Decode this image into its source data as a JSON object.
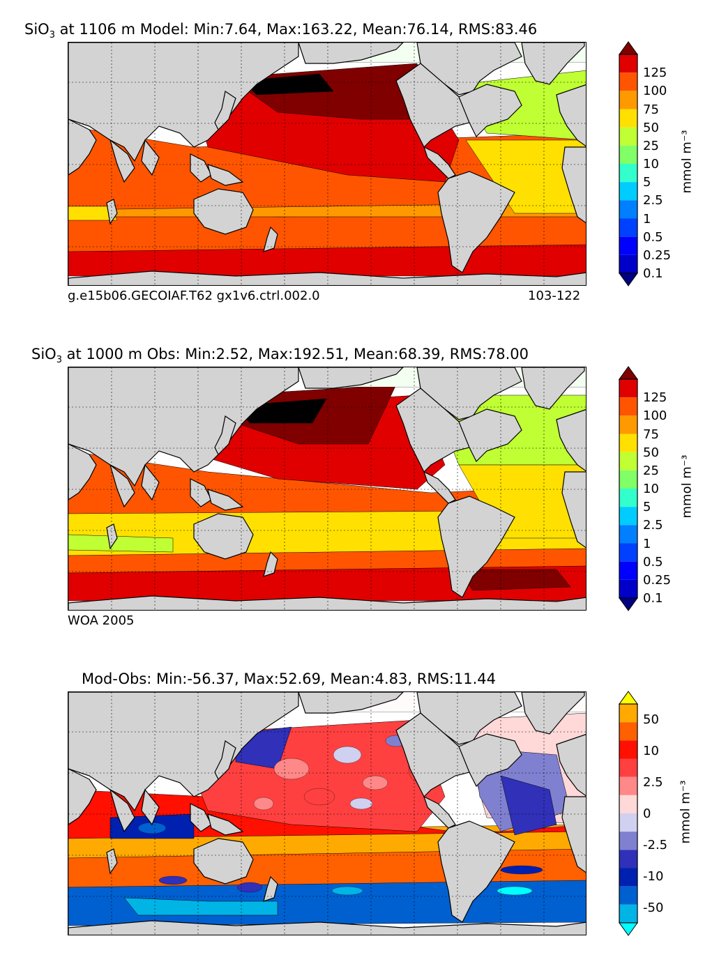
{
  "panels": [
    {
      "title_text": "at 1106 m Model: Min:7.64, Max:163.22, Mean:76.14, RMS:83.46",
      "caption_left": "g.e15b06.GECOIAF.T62 gx1v6.ctrl.002.0",
      "caption_right": "103-122"
    },
    {
      "title_text": "at 1000 m Obs: Min:2.52, Max:192.51, Mean:68.39, RMS:78.00",
      "caption_left": "WOA 2005",
      "caption_right": ""
    },
    {
      "title_text": "Mod-Obs: Min:-56.37, Max:52.69, Mean:4.83, RMS:11.44",
      "caption_left": "",
      "caption_right": ""
    }
  ],
  "species": {
    "base": "SiO",
    "sub": "3"
  },
  "units": "mmol m⁻³",
  "chart_data": [
    {
      "type": "heatmap",
      "title": "SiO3 at 1106 m Model: Min:7.64, Max:163.22, Mean:76.14, RMS:83.46",
      "stats": {
        "min": 7.64,
        "max": 163.22,
        "mean": 76.14,
        "rms": 83.46
      },
      "depth_m": 1106,
      "colorbar": {
        "tick_labels": [
          "125",
          "100",
          "75",
          "50",
          "25",
          "10",
          "5",
          "2.5",
          "1",
          "0.5",
          "0.25",
          "0.1"
        ],
        "levels": [
          0.1,
          0.25,
          0.5,
          1,
          2.5,
          5,
          10,
          25,
          50,
          75,
          100,
          125
        ],
        "colors": [
          "#000080",
          "#0000c8",
          "#0000ff",
          "#0040ff",
          "#0080ff",
          "#00ccff",
          "#33ffcc",
          "#80ff66",
          "#bfff33",
          "#ffe000",
          "#ff9900",
          "#ff5500",
          "#e00000",
          "#800000"
        ],
        "extend": "both"
      },
      "legend_position": "right",
      "grid": true
    },
    {
      "type": "heatmap",
      "title": "SiO3 at 1000 m Obs: Min:2.52, Max:192.51, Mean:68.39, RMS:78.00",
      "stats": {
        "min": 2.52,
        "max": 192.51,
        "mean": 68.39,
        "rms": 78.0
      },
      "depth_m": 1000,
      "colorbar": {
        "tick_labels": [
          "125",
          "100",
          "75",
          "50",
          "25",
          "10",
          "5",
          "2.5",
          "1",
          "0.5",
          "0.25",
          "0.1"
        ],
        "levels": [
          0.1,
          0.25,
          0.5,
          1,
          2.5,
          5,
          10,
          25,
          50,
          75,
          100,
          125
        ],
        "colors": [
          "#000080",
          "#0000c8",
          "#0000ff",
          "#0040ff",
          "#0080ff",
          "#00ccff",
          "#33ffcc",
          "#80ff66",
          "#bfff33",
          "#ffe000",
          "#ff9900",
          "#ff5500",
          "#e00000",
          "#800000"
        ],
        "extend": "both"
      },
      "legend_position": "right",
      "grid": true
    },
    {
      "type": "heatmap",
      "title": "Mod-Obs: Min:-56.37, Max:52.69, Mean:4.83, RMS:11.44",
      "stats": {
        "min": -56.37,
        "max": 52.69,
        "mean": 4.83,
        "rms": 11.44
      },
      "colorbar": {
        "tick_labels": [
          "50",
          "10",
          "2.5",
          "0",
          "-2.5",
          "-10",
          "-50"
        ],
        "levels": [
          -50,
          -25,
          -10,
          -5,
          -2.5,
          -1,
          0,
          1,
          2.5,
          5,
          10,
          25,
          50
        ],
        "colors": [
          "#00ffff",
          "#00b4e6",
          "#0060d0",
          "#0020b0",
          "#3030b8",
          "#8080d0",
          "#d0d0f0",
          "#ffd8d8",
          "#ff8888",
          "#ff4040",
          "#ff1000",
          "#ff6000",
          "#ffaa00",
          "#ffff00"
        ],
        "extend": "both"
      },
      "legend_position": "right",
      "grid": true
    }
  ]
}
